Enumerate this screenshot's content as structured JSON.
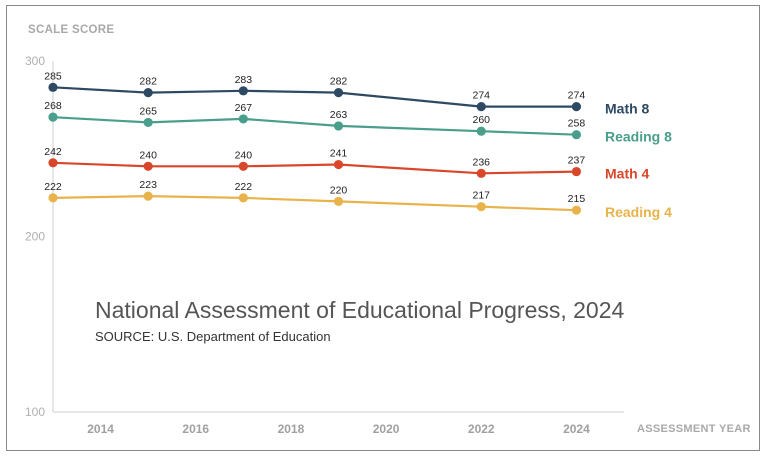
{
  "chart_data": {
    "type": "line",
    "title": "National Assessment of Educational Progress, 2024",
    "source": "SOURCE: U.S. Department of Education",
    "ylabel": "SCALE SCORE",
    "xlabel": "ASSESSMENT YEAR",
    "ylim": [
      100,
      300
    ],
    "yticks": [
      100,
      200,
      300
    ],
    "xlim": [
      2013,
      2025
    ],
    "xticks": [
      2014,
      2016,
      2018,
      2020,
      2022,
      2024
    ],
    "x": [
      2013,
      2015,
      2017,
      2019,
      2022,
      2024
    ],
    "grid": false,
    "legend": "direct labels at right",
    "series": [
      {
        "name": "Math 8",
        "color": "#2e4a63",
        "values": [
          285,
          282,
          283,
          282,
          274,
          274
        ],
        "labels": [
          "285",
          "282",
          "283",
          "282",
          "274",
          "274"
        ]
      },
      {
        "name": "Reading 8",
        "color": "#4a9e8c",
        "values": [
          268,
          265,
          267,
          263,
          260,
          258
        ],
        "labels": [
          "268",
          "265",
          "267",
          "263",
          "260",
          "258"
        ]
      },
      {
        "name": "Math 4",
        "color": "#d9472b",
        "values": [
          242,
          240,
          240,
          241,
          236,
          237
        ],
        "labels": [
          "242",
          "240",
          "240",
          "241",
          "236",
          "237"
        ]
      },
      {
        "name": "Reading 4",
        "color": "#e8b34a",
        "values": [
          222,
          223,
          222,
          220,
          217,
          215
        ],
        "labels": [
          "222",
          "223",
          "222",
          "220",
          "217",
          "215"
        ]
      }
    ]
  }
}
